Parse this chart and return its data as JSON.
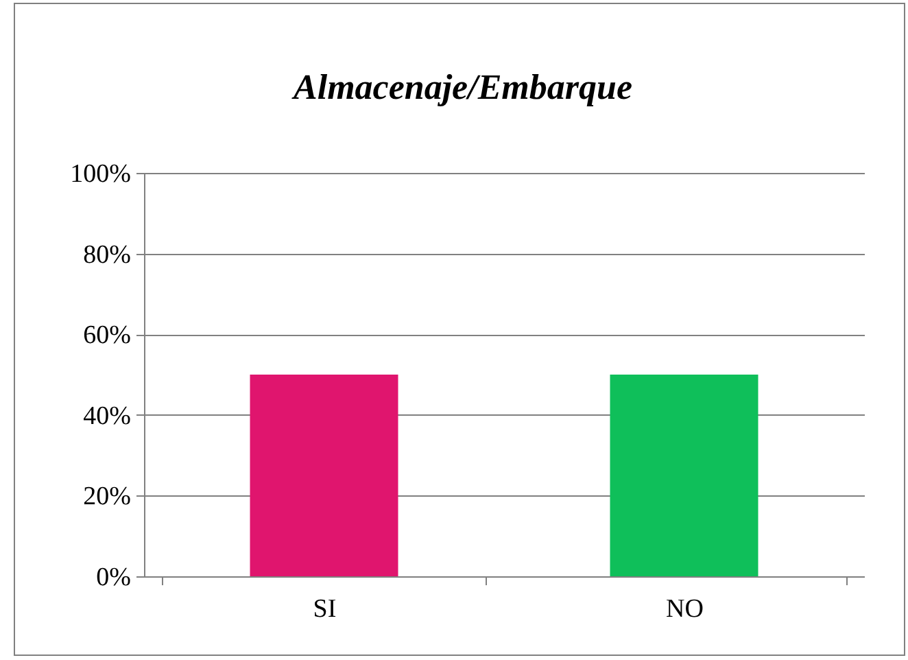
{
  "chart_data": {
    "type": "bar",
    "title": "Almacenaje/Embarque",
    "categories": [
      "SI",
      "NO"
    ],
    "values": [
      50,
      50
    ],
    "colors": [
      "#e0156e",
      "#0fbf5a"
    ],
    "ylim": [
      0,
      100
    ],
    "yticks": [
      {
        "value": 0,
        "label": "0%"
      },
      {
        "value": 20,
        "label": "20%"
      },
      {
        "value": 40,
        "label": "40%"
      },
      {
        "value": 60,
        "label": "60%"
      },
      {
        "value": 80,
        "label": "80%"
      },
      {
        "value": 100,
        "label": "100%"
      }
    ],
    "grid": "y"
  }
}
